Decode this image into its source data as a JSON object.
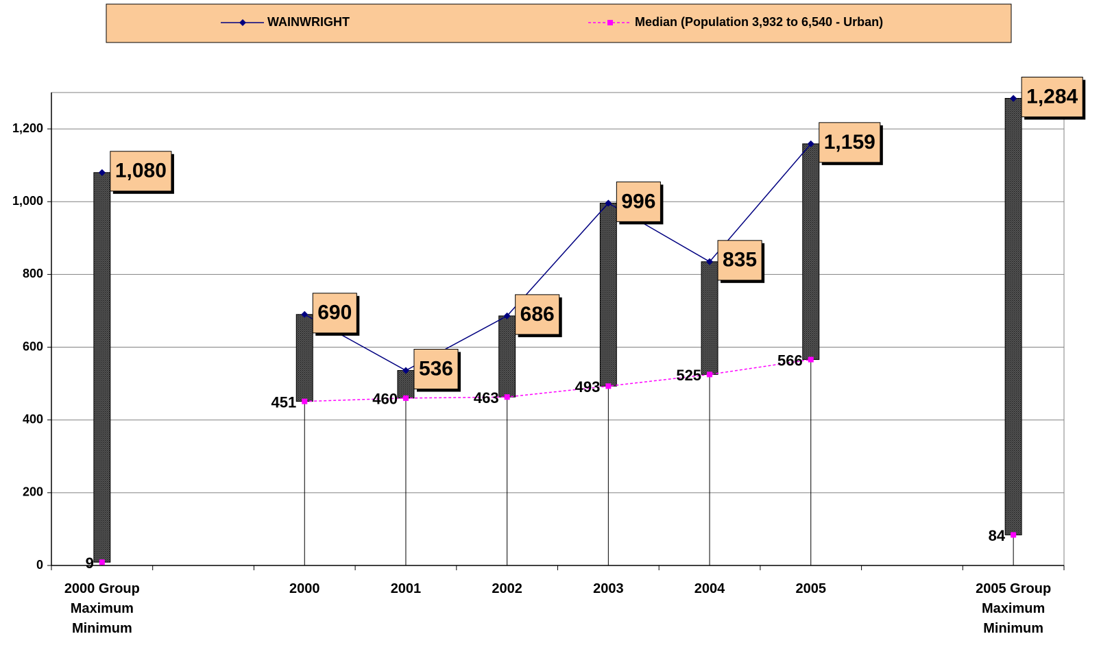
{
  "chart_data": {
    "type": "line",
    "categories": [
      "2000 Group\nMaximum\nMinimum",
      null,
      "2000",
      "2001",
      "2002",
      "2003",
      "2004",
      "2005",
      null,
      "2005 Group\nMaximum\nMinimum"
    ],
    "series": [
      {
        "name": "WAINWRIGHT",
        "color": "#000080",
        "marker": "diamond",
        "values": [
          1080,
          null,
          690,
          536,
          686,
          996,
          835,
          1159,
          null,
          1284
        ],
        "value_labels": [
          "1,080",
          null,
          "690",
          "536",
          "686",
          "996",
          "835",
          "1,159",
          null,
          "1,284"
        ]
      },
      {
        "name": "Median (Population 3,932 to 6,540 - Urban)",
        "color": "#ff00ff",
        "marker": "square",
        "dashed": true,
        "values": [
          9,
          null,
          451,
          460,
          463,
          493,
          525,
          566,
          null,
          84
        ]
      }
    ],
    "ylim": [
      0,
      1300
    ],
    "yticks": [
      0,
      200,
      400,
      600,
      800,
      {
        "value": 1000,
        "label": "1,000"
      },
      {
        "value": 1200,
        "label": "1,200"
      }
    ],
    "grid": true,
    "legend": "top"
  }
}
